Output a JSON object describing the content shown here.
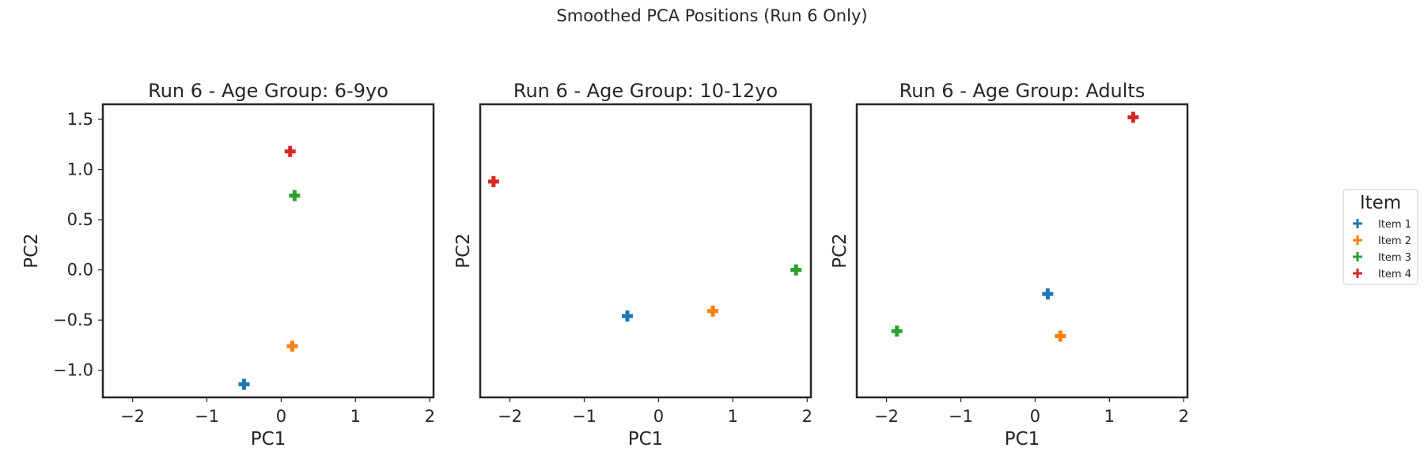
{
  "figure": {
    "suptitle": "Smoothed PCA Positions (Run 6 Only)"
  },
  "legend": {
    "title": "Item",
    "placement": "right",
    "entries": [
      {
        "label": "Item 1",
        "color": "#1f77b4"
      },
      {
        "label": "Item 2",
        "color": "#ff7f0e"
      },
      {
        "label": "Item 3",
        "color": "#2ca02c"
      },
      {
        "label": "Item 4",
        "color": "#d62728"
      }
    ]
  },
  "chart_data": [
    {
      "type": "scatter",
      "title": "Run 6 - Age Group: 6-9yo",
      "xlabel": "PC1",
      "ylabel": "PC2",
      "xlim": [
        -2.4,
        2.05
      ],
      "ylim": [
        -1.27,
        1.65
      ],
      "xticks": [
        -2,
        -1,
        0,
        1,
        2
      ],
      "xtick_labels": [
        "−2",
        "−1",
        "0",
        "1",
        "2"
      ],
      "yticks": [
        -1.0,
        -0.5,
        0.0,
        0.5,
        1.0,
        1.5
      ],
      "ytick_labels": [
        "−1.0",
        "−0.5",
        "0.0",
        "0.5",
        "1.0",
        "1.5"
      ],
      "grid": false,
      "marker": "plus",
      "series": [
        {
          "name": "Item 1",
          "color": "#1f77b4",
          "x": [
            -0.5
          ],
          "y": [
            -1.14
          ]
        },
        {
          "name": "Item 2",
          "color": "#ff7f0e",
          "x": [
            0.15
          ],
          "y": [
            -0.76
          ]
        },
        {
          "name": "Item 3",
          "color": "#2ca02c",
          "x": [
            0.18
          ],
          "y": [
            0.74
          ]
        },
        {
          "name": "Item 4",
          "color": "#d62728",
          "x": [
            0.12
          ],
          "y": [
            1.18
          ]
        }
      ]
    },
    {
      "type": "scatter",
      "title": "Run 6 - Age Group: 10-12yo",
      "xlabel": "PC1",
      "ylabel": "PC2",
      "xlim": [
        -2.4,
        2.05
      ],
      "ylim": [
        -1.27,
        1.65
      ],
      "xticks": [
        -2,
        -1,
        0,
        1,
        2
      ],
      "xtick_labels": [
        "−2",
        "−1",
        "0",
        "1",
        "2"
      ],
      "yticks": [],
      "ytick_labels": [],
      "grid": false,
      "marker": "plus",
      "series": [
        {
          "name": "Item 1",
          "color": "#1f77b4",
          "x": [
            -0.42
          ],
          "y": [
            -0.46
          ]
        },
        {
          "name": "Item 2",
          "color": "#ff7f0e",
          "x": [
            0.73
          ],
          "y": [
            -0.41
          ]
        },
        {
          "name": "Item 3",
          "color": "#2ca02c",
          "x": [
            1.85
          ],
          "y": [
            0.0
          ]
        },
        {
          "name": "Item 4",
          "color": "#d62728",
          "x": [
            -2.22
          ],
          "y": [
            0.88
          ]
        }
      ]
    },
    {
      "type": "scatter",
      "title": "Run 6 - Age Group: Adults",
      "xlabel": "PC1",
      "ylabel": "PC2",
      "xlim": [
        -2.4,
        2.05
      ],
      "ylim": [
        -1.27,
        1.65
      ],
      "xticks": [
        -2,
        -1,
        0,
        1,
        2
      ],
      "xtick_labels": [
        "−2",
        "−1",
        "0",
        "1",
        "2"
      ],
      "yticks": [],
      "ytick_labels": [],
      "grid": false,
      "marker": "plus",
      "series": [
        {
          "name": "Item 1",
          "color": "#1f77b4",
          "x": [
            0.17
          ],
          "y": [
            -0.24
          ]
        },
        {
          "name": "Item 2",
          "color": "#ff7f0e",
          "x": [
            0.34
          ],
          "y": [
            -0.66
          ]
        },
        {
          "name": "Item 3",
          "color": "#2ca02c",
          "x": [
            -1.86
          ],
          "y": [
            -0.61
          ]
        },
        {
          "name": "Item 4",
          "color": "#d62728",
          "x": [
            1.32
          ],
          "y": [
            1.52
          ]
        }
      ]
    }
  ]
}
